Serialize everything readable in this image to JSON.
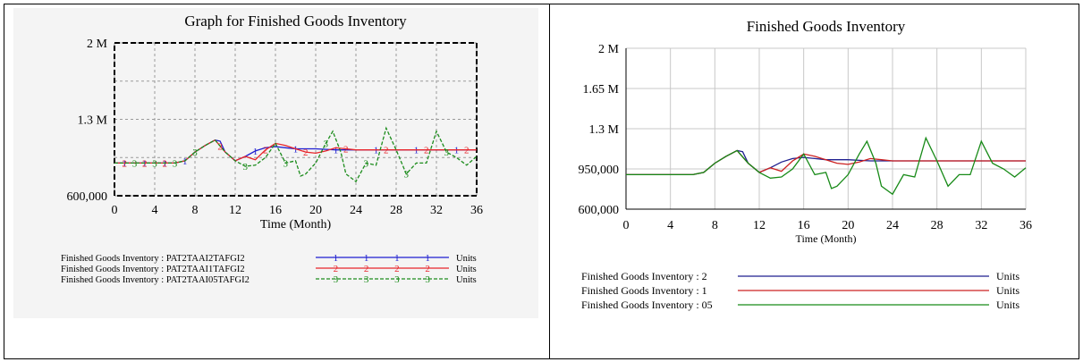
{
  "chart_data": [
    {
      "type": "line",
      "title": "Graph for Finished Goods Inventory",
      "xlabel": "Time (Month)",
      "ylabel": "",
      "xlim": [
        0,
        36
      ],
      "ylim": [
        600000,
        2000000
      ],
      "x_ticks": [
        "0",
        "4",
        "8",
        "12",
        "16",
        "20",
        "24",
        "28",
        "32",
        "36"
      ],
      "y_ticks": [
        "2 M",
        "1.3 M",
        "600,000"
      ],
      "grid": true,
      "legend_position": "bottom",
      "series": [
        {
          "name": "Finished Goods Inventory : PAT2TAAI2TAFGI2",
          "marker": "1",
          "units": "Units",
          "color": "#1f1fd0",
          "x": [
            0,
            6,
            7,
            8,
            9,
            10,
            10.5,
            11,
            12,
            13,
            14,
            15,
            16,
            17,
            18,
            20,
            22,
            24,
            28,
            32,
            36
          ],
          "y": [
            900000,
            900000,
            920000,
            1000000,
            1060000,
            1110000,
            1100000,
            1000000,
            920000,
            960000,
            1010000,
            1040000,
            1050000,
            1040000,
            1030000,
            1030000,
            1020000,
            1020000,
            1020000,
            1020000,
            1020000
          ]
        },
        {
          "name": "Finished Goods Inventory : PAT2TAAI1TAFGI2",
          "marker": "2",
          "units": "Units",
          "color": "#e8242a",
          "x": [
            0,
            6,
            7,
            8,
            9,
            10,
            11,
            12,
            13,
            14,
            15,
            16,
            17,
            18,
            19,
            20,
            21,
            22,
            23,
            24,
            28,
            32,
            36
          ],
          "y": [
            900000,
            900000,
            920000,
            1000000,
            1060000,
            1110000,
            1000000,
            920000,
            960000,
            930000,
            1020000,
            1080000,
            1060000,
            1030000,
            1000000,
            990000,
            1010000,
            1040000,
            1030000,
            1020000,
            1020000,
            1020000,
            1020000
          ]
        },
        {
          "name": "Finished Goods Inventory : PAT2TAAI05TAFGI2",
          "marker": "3",
          "units": "Units",
          "color": "#1c8c1c",
          "x": [
            0,
            6,
            7,
            8,
            9,
            10,
            11,
            12,
            13,
            14,
            15,
            16,
            17,
            18,
            18.5,
            19,
            20,
            21,
            21.7,
            22.5,
            23,
            24,
            25,
            26,
            27,
            28,
            29,
            30,
            31,
            32,
            33,
            34,
            35,
            36
          ],
          "y": [
            900000,
            900000,
            920000,
            1000000,
            1060000,
            1110000,
            1000000,
            920000,
            870000,
            880000,
            950000,
            1080000,
            900000,
            920000,
            780000,
            800000,
            900000,
            1080000,
            1190000,
            1000000,
            800000,
            730000,
            900000,
            880000,
            1220000,
            1020000,
            800000,
            900000,
            900000,
            1190000,
            1000000,
            950000,
            880000,
            960000
          ]
        }
      ]
    },
    {
      "type": "line",
      "title": "Finished Goods Inventory",
      "xlabel": "Time (Month)",
      "ylabel": "",
      "xlim": [
        0,
        36
      ],
      "ylim": [
        600000,
        2000000
      ],
      "x_ticks": [
        "0",
        "4",
        "8",
        "12",
        "16",
        "20",
        "24",
        "28",
        "32",
        "36"
      ],
      "y_ticks": [
        "2 M",
        "1.65 M",
        "1.3 M",
        "950,000",
        "600,000"
      ],
      "grid": true,
      "legend_position": "bottom",
      "series": [
        {
          "name": "Finished Goods Inventory : 2",
          "units": "Units",
          "color": "#1f1f8f",
          "x": [
            0,
            6,
            7,
            8,
            9,
            10,
            10.5,
            11,
            12,
            13,
            14,
            15,
            16,
            17,
            18,
            20,
            22,
            24,
            28,
            32,
            36
          ],
          "y": [
            900000,
            900000,
            920000,
            1000000,
            1060000,
            1110000,
            1100000,
            1000000,
            920000,
            960000,
            1010000,
            1040000,
            1050000,
            1040000,
            1030000,
            1030000,
            1020000,
            1020000,
            1020000,
            1020000,
            1020000
          ]
        },
        {
          "name": "Finished Goods Inventory : 1",
          "units": "Units",
          "color": "#cc2020",
          "x": [
            0,
            6,
            7,
            8,
            9,
            10,
            11,
            12,
            13,
            14,
            15,
            16,
            17,
            18,
            19,
            20,
            21,
            22,
            23,
            24,
            28,
            32,
            36
          ],
          "y": [
            900000,
            900000,
            920000,
            1000000,
            1060000,
            1110000,
            1000000,
            920000,
            960000,
            930000,
            1020000,
            1080000,
            1060000,
            1030000,
            1000000,
            990000,
            1010000,
            1040000,
            1030000,
            1020000,
            1020000,
            1020000,
            1020000
          ]
        },
        {
          "name": "Finished Goods Inventory : 05",
          "units": "Units",
          "color": "#178a17",
          "x": [
            0,
            6,
            7,
            8,
            9,
            10,
            11,
            12,
            13,
            14,
            15,
            16,
            17,
            18,
            18.5,
            19,
            20,
            21,
            21.7,
            22.5,
            23,
            24,
            25,
            26,
            27,
            28,
            29,
            30,
            31,
            32,
            33,
            34,
            35,
            36
          ],
          "y": [
            900000,
            900000,
            920000,
            1000000,
            1060000,
            1110000,
            1000000,
            920000,
            870000,
            880000,
            950000,
            1080000,
            900000,
            920000,
            780000,
            800000,
            900000,
            1080000,
            1190000,
            1000000,
            800000,
            730000,
            900000,
            880000,
            1220000,
            1020000,
            800000,
            900000,
            900000,
            1190000,
            1000000,
            950000,
            880000,
            960000
          ]
        }
      ]
    }
  ]
}
